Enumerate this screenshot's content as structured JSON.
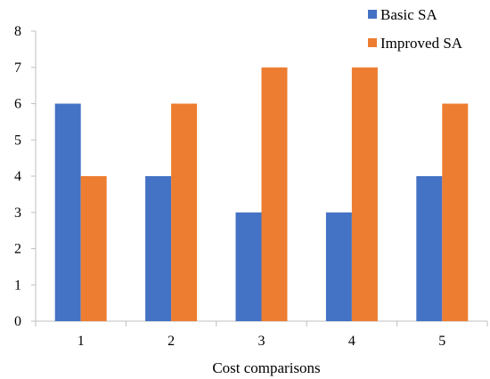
{
  "chart_data": {
    "type": "bar",
    "categories": [
      "1",
      "2",
      "3",
      "4",
      "5"
    ],
    "series": [
      {
        "name": "Basic SA",
        "values": [
          6,
          4,
          3,
          3,
          4
        ],
        "color": "#4472C4"
      },
      {
        "name": "Improved SA",
        "values": [
          4,
          6,
          7,
          7,
          6
        ],
        "color": "#ED7D31"
      }
    ],
    "xlabel": "Cost comparisons",
    "ylabel": "",
    "ylim": [
      0,
      8
    ],
    "yticks": [
      "0",
      "1",
      "2",
      "3",
      "4",
      "5",
      "6",
      "7",
      "8"
    ],
    "grid": false,
    "legend_position": "top-right"
  }
}
